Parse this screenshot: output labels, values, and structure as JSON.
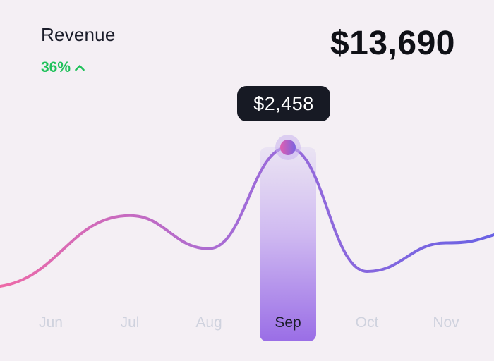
{
  "header": {
    "title": "Revenue",
    "change": "36%",
    "total": "$13,690"
  },
  "tooltip": {
    "value": "$2,458"
  },
  "colors": {
    "background": "#f4eff4",
    "positive": "#1fc15a",
    "line_start": "#ee6aa7",
    "line_mid": "#a06bd8",
    "line_end": "#6a62e4",
    "label_muted": "#cfd2de",
    "label_active": "#1b1d2a",
    "tooltip_bg": "#171a24"
  },
  "chart_data": {
    "type": "line",
    "title": "Revenue",
    "categories": [
      "Jun",
      "Jul",
      "Aug",
      "Sep",
      "Oct",
      "Nov"
    ],
    "highlighted_category": "Sep",
    "highlight_value": 2458,
    "series": [
      {
        "values": [
          1240,
          1860,
          1570,
          2458,
          1370,
          1620
        ]
      }
    ],
    "grid": false,
    "legend": "none"
  }
}
